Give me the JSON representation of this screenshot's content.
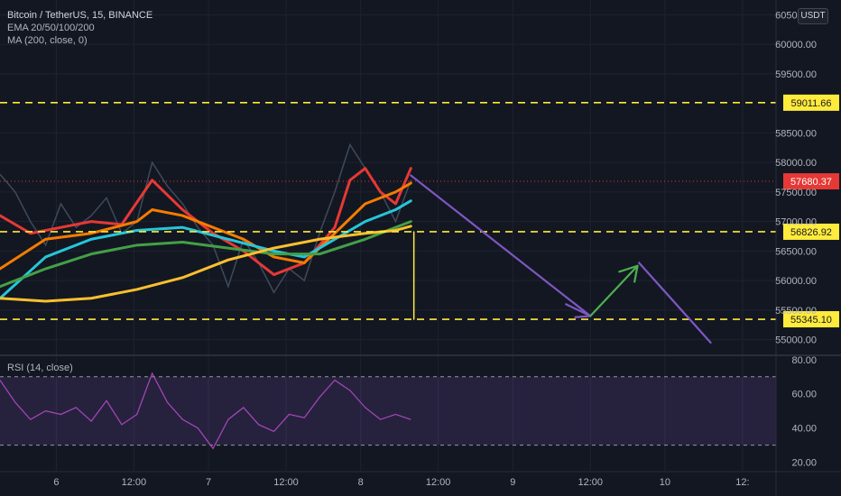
{
  "legend": {
    "symbol": "Bitcoin / TetherUS, 15, BINANCE",
    "ema": "EMA 20/50/100/200",
    "ma": "MA (200, close, 0)"
  },
  "rsi_legend": "RSI (14, close)",
  "currency_button": "USDT",
  "chart_data": [
    {
      "type": "line",
      "panel": "price",
      "y_scale": "price",
      "ylim": [
        54750,
        60750
      ],
      "xlim": [
        0,
        5.1
      ],
      "x_unit": "days from start of 6",
      "x_ticks": [
        {
          "x": 0.37,
          "label": "6"
        },
        {
          "x": 0.88,
          "label": "12:00"
        },
        {
          "x": 1.37,
          "label": "7"
        },
        {
          "x": 1.88,
          "label": "12:00"
        },
        {
          "x": 2.37,
          "label": "8"
        },
        {
          "x": 2.88,
          "label": "12:00"
        },
        {
          "x": 3.37,
          "label": "9"
        },
        {
          "x": 3.88,
          "label": "12:00"
        },
        {
          "x": 4.37,
          "label": "10"
        },
        {
          "x": 4.88,
          "label": "12:"
        }
      ],
      "y_ticks": [
        {
          "v": 60500,
          "label": "60500.00"
        },
        {
          "v": 60000,
          "label": "60000.00"
        },
        {
          "v": 59500,
          "label": "59500.00"
        },
        {
          "v": 58500,
          "label": "58500.00"
        },
        {
          "v": 58000,
          "label": "58000.00"
        },
        {
          "v": 57500,
          "label": "57500.00"
        },
        {
          "v": 57000,
          "label": "57000.00"
        },
        {
          "v": 56500,
          "label": "56500.00"
        },
        {
          "v": 56000,
          "label": "56000.00"
        },
        {
          "v": 55500,
          "label": "55500.00"
        },
        {
          "v": 55000,
          "label": "55000.00"
        }
      ],
      "price_series": {
        "name": "Bitcoin / TetherUS",
        "color": "#3e4a5a",
        "x": [
          0,
          0.1,
          0.2,
          0.3,
          0.4,
          0.5,
          0.6,
          0.7,
          0.8,
          0.9,
          1.0,
          1.1,
          1.2,
          1.3,
          1.4,
          1.5,
          1.6,
          1.7,
          1.8,
          1.9,
          2.0,
          2.1,
          2.2,
          2.3,
          2.4,
          2.5,
          2.6,
          2.7
        ],
        "y": [
          57800,
          57500,
          57000,
          56600,
          57300,
          56900,
          57100,
          57400,
          56800,
          57000,
          58000,
          57600,
          57300,
          56900,
          56600,
          55900,
          56700,
          56300,
          55800,
          56200,
          56000,
          56800,
          57500,
          58300,
          57900,
          57500,
          57000,
          57700
        ]
      },
      "series": [
        {
          "color": "#e53935",
          "x": [
            0,
            0.2,
            0.4,
            0.6,
            0.8,
            1.0,
            1.2,
            1.4,
            1.6,
            1.8,
            2.0,
            2.2,
            2.3,
            2.4,
            2.5,
            2.6,
            2.7
          ],
          "y": [
            57100,
            56800,
            56900,
            57000,
            56950,
            57700,
            57200,
            56800,
            56500,
            56100,
            56300,
            56900,
            57700,
            57900,
            57500,
            57300,
            57900
          ]
        },
        {
          "color": "#f57c00",
          "x": [
            0,
            0.3,
            0.6,
            0.9,
            1.0,
            1.2,
            1.4,
            1.6,
            1.8,
            2.0,
            2.2,
            2.4,
            2.6,
            2.7
          ],
          "y": [
            56200,
            56700,
            56800,
            57000,
            57200,
            57100,
            56900,
            56700,
            56400,
            56300,
            56800,
            57300,
            57500,
            57650
          ]
        },
        {
          "color": "#26c6da",
          "x": [
            0,
            0.3,
            0.6,
            0.9,
            1.2,
            1.5,
            1.8,
            2.0,
            2.2,
            2.4,
            2.6,
            2.7
          ],
          "y": [
            55700,
            56400,
            56700,
            56850,
            56900,
            56700,
            56500,
            56400,
            56700,
            57000,
            57200,
            57350
          ]
        },
        {
          "color": "#43a047",
          "x": [
            0,
            0.3,
            0.6,
            0.9,
            1.2,
            1.5,
            1.8,
            2.1,
            2.4,
            2.6,
            2.7
          ],
          "y": [
            55900,
            56200,
            56450,
            56600,
            56650,
            56550,
            56450,
            56450,
            56700,
            56900,
            57000
          ]
        },
        {
          "color": "#fbc02d",
          "x": [
            0,
            0.3,
            0.6,
            0.9,
            1.2,
            1.5,
            1.8,
            2.1,
            2.4,
            2.6,
            2.7
          ],
          "y": [
            55700,
            55650,
            55700,
            55850,
            56050,
            56350,
            56550,
            56700,
            56800,
            56850,
            56920
          ]
        }
      ],
      "levels": [
        {
          "value": 59011.66,
          "label": "59011.66",
          "color": "#ffeb3b",
          "style": "dashed"
        },
        {
          "value": 56826.92,
          "label": "56826.92",
          "color": "#ffeb3b",
          "style": "dashed"
        },
        {
          "value": 55345.1,
          "label": "55345.10",
          "color": "#ffeb3b",
          "style": "dashed"
        }
      ],
      "last_price": {
        "value": 57680.37,
        "label": "57680.37",
        "color": "#e53935"
      },
      "drawings": [
        {
          "kind": "path",
          "color": "#7e57c2",
          "x": [
            2.7,
            3.88
          ],
          "y": [
            57780,
            55400
          ]
        },
        {
          "kind": "arrowhead",
          "color": "#7e57c2",
          "x": [
            3.78,
            3.88,
            3.72
          ],
          "y": [
            55380,
            55400,
            55600
          ]
        },
        {
          "kind": "path",
          "color": "#4caf50",
          "x": [
            3.88,
            4.19
          ],
          "y": [
            55400,
            56250
          ]
        },
        {
          "kind": "path",
          "color": "#4caf50",
          "x": [
            4.07,
            4.19,
            4.17
          ],
          "y": [
            56150,
            56250,
            55980
          ]
        },
        {
          "kind": "path",
          "color": "#7e57c2",
          "x": [
            4.2,
            4.67
          ],
          "y": [
            56300,
            54950
          ]
        },
        {
          "kind": "vertical",
          "color": "#ffeb3b",
          "x": [
            2.72,
            2.72
          ],
          "y": [
            56826.92,
            55345.1
          ]
        }
      ]
    },
    {
      "type": "line",
      "panel": "rsi",
      "ylim": [
        15,
        82
      ],
      "y_ticks": [
        {
          "v": 80,
          "label": "80.00"
        },
        {
          "v": 60,
          "label": "60.00"
        },
        {
          "v": 40,
          "label": "40.00"
        },
        {
          "v": 20,
          "label": "20.00"
        }
      ],
      "bands": [
        70,
        30
      ],
      "band_color": "#7e57c2",
      "series": [
        {
          "color": "#ab47bc",
          "x": [
            0,
            0.1,
            0.2,
            0.3,
            0.4,
            0.5,
            0.6,
            0.7,
            0.8,
            0.9,
            1.0,
            1.1,
            1.2,
            1.3,
            1.4,
            1.5,
            1.6,
            1.7,
            1.8,
            1.9,
            2.0,
            2.1,
            2.2,
            2.3,
            2.4,
            2.5,
            2.6,
            2.7
          ],
          "y": [
            68,
            55,
            45,
            50,
            48,
            52,
            44,
            56,
            42,
            48,
            72,
            55,
            45,
            40,
            28,
            45,
            52,
            42,
            38,
            48,
            46,
            58,
            68,
            62,
            52,
            45,
            48,
            45
          ]
        }
      ]
    }
  ]
}
